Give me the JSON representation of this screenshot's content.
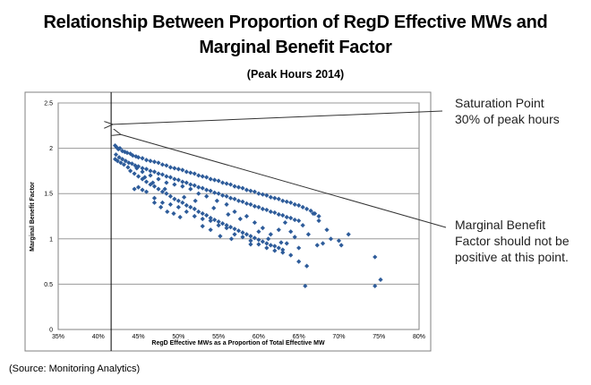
{
  "title_line1": "Relationship Between Proportion of RegD Effective MWs and",
  "title_line2": "Marginal Benefit Factor",
  "subtitle": "(Peak Hours 2014)",
  "source": "(Source: Monitoring Analytics)",
  "annotations": {
    "saturation_line1": "Saturation  Point",
    "saturation_line2": "30% of peak hours",
    "mbf_line1": "Marginal Benefit",
    "mbf_line2": "Factor should not be",
    "mbf_line3": "positive at this point."
  },
  "colors": {
    "points": "#2E5C9A",
    "grid": "#9A9A9A",
    "border": "#808080"
  },
  "chart_data": {
    "type": "scatter",
    "title": "Relationship Between Proportion of RegD Effective MWs and Marginal Benefit Factor",
    "subtitle": "(Peak Hours 2014)",
    "xlabel": "RegD Effective MWs  as a Proportion of Total Effective MW",
    "ylabel": "Marginal Benefit Factor",
    "xlim": [
      0.35,
      0.8
    ],
    "ylim": [
      0,
      2.5
    ],
    "x_ticks": [
      0.35,
      0.4,
      0.45,
      0.5,
      0.55,
      0.6,
      0.65,
      0.7,
      0.75,
      0.8
    ],
    "x_tick_labels": [
      "35%",
      "40%",
      "45%",
      "50%",
      "55%",
      "60%",
      "65%",
      "70%",
      "75%",
      "80%"
    ],
    "y_ticks": [
      0,
      0.5,
      1,
      1.5,
      2,
      2.5
    ],
    "y_tick_labels": [
      "0",
      "0.5",
      "1",
      "1.5",
      "2",
      "2.5"
    ],
    "grid": "horizontal",
    "saturation_point_x": 0.416,
    "points": [
      [
        0.421,
        2.03
      ],
      [
        0.423,
        2.01
      ],
      [
        0.425,
        1.99
      ],
      [
        0.427,
        2.0
      ],
      [
        0.43,
        1.97
      ],
      [
        0.433,
        1.96
      ],
      [
        0.436,
        1.95
      ],
      [
        0.44,
        1.94
      ],
      [
        0.443,
        1.92
      ],
      [
        0.447,
        1.91
      ],
      [
        0.45,
        1.9
      ],
      [
        0.455,
        1.89
      ],
      [
        0.46,
        1.87
      ],
      [
        0.465,
        1.86
      ],
      [
        0.47,
        1.85
      ],
      [
        0.475,
        1.84
      ],
      [
        0.48,
        1.82
      ],
      [
        0.485,
        1.81
      ],
      [
        0.49,
        1.79
      ],
      [
        0.495,
        1.78
      ],
      [
        0.5,
        1.77
      ],
      [
        0.505,
        1.76
      ],
      [
        0.51,
        1.74
      ],
      [
        0.515,
        1.73
      ],
      [
        0.52,
        1.72
      ],
      [
        0.525,
        1.7
      ],
      [
        0.53,
        1.69
      ],
      [
        0.535,
        1.68
      ],
      [
        0.54,
        1.66
      ],
      [
        0.545,
        1.65
      ],
      [
        0.55,
        1.64
      ],
      [
        0.555,
        1.62
      ],
      [
        0.56,
        1.61
      ],
      [
        0.565,
        1.6
      ],
      [
        0.57,
        1.58
      ],
      [
        0.575,
        1.57
      ],
      [
        0.58,
        1.56
      ],
      [
        0.585,
        1.54
      ],
      [
        0.59,
        1.53
      ],
      [
        0.595,
        1.52
      ],
      [
        0.6,
        1.5
      ],
      [
        0.605,
        1.49
      ],
      [
        0.61,
        1.48
      ],
      [
        0.615,
        1.46
      ],
      [
        0.62,
        1.45
      ],
      [
        0.625,
        1.44
      ],
      [
        0.63,
        1.42
      ],
      [
        0.635,
        1.41
      ],
      [
        0.64,
        1.4
      ],
      [
        0.645,
        1.38
      ],
      [
        0.65,
        1.37
      ],
      [
        0.655,
        1.35
      ],
      [
        0.66,
        1.33
      ],
      [
        0.665,
        1.31
      ],
      [
        0.67,
        1.28
      ],
      [
        0.675,
        1.25
      ],
      [
        0.422,
        1.93
      ],
      [
        0.426,
        1.9
      ],
      [
        0.43,
        1.88
      ],
      [
        0.434,
        1.86
      ],
      [
        0.438,
        1.84
      ],
      [
        0.442,
        1.83
      ],
      [
        0.446,
        1.81
      ],
      [
        0.45,
        1.8
      ],
      [
        0.455,
        1.78
      ],
      [
        0.46,
        1.77
      ],
      [
        0.465,
        1.75
      ],
      [
        0.47,
        1.74
      ],
      [
        0.475,
        1.72
      ],
      [
        0.48,
        1.71
      ],
      [
        0.485,
        1.69
      ],
      [
        0.49,
        1.68
      ],
      [
        0.495,
        1.66
      ],
      [
        0.5,
        1.65
      ],
      [
        0.505,
        1.63
      ],
      [
        0.51,
        1.62
      ],
      [
        0.515,
        1.6
      ],
      [
        0.52,
        1.59
      ],
      [
        0.525,
        1.57
      ],
      [
        0.53,
        1.56
      ],
      [
        0.535,
        1.54
      ],
      [
        0.54,
        1.53
      ],
      [
        0.545,
        1.51
      ],
      [
        0.55,
        1.5
      ],
      [
        0.555,
        1.48
      ],
      [
        0.56,
        1.47
      ],
      [
        0.565,
        1.45
      ],
      [
        0.57,
        1.44
      ],
      [
        0.575,
        1.42
      ],
      [
        0.58,
        1.41
      ],
      [
        0.585,
        1.39
      ],
      [
        0.59,
        1.38
      ],
      [
        0.595,
        1.36
      ],
      [
        0.6,
        1.35
      ],
      [
        0.605,
        1.33
      ],
      [
        0.61,
        1.32
      ],
      [
        0.615,
        1.3
      ],
      [
        0.62,
        1.29
      ],
      [
        0.625,
        1.27
      ],
      [
        0.63,
        1.26
      ],
      [
        0.635,
        1.24
      ],
      [
        0.64,
        1.23
      ],
      [
        0.645,
        1.21
      ],
      [
        0.65,
        1.2
      ],
      [
        0.44,
        1.75
      ],
      [
        0.445,
        1.72
      ],
      [
        0.45,
        1.69
      ],
      [
        0.455,
        1.66
      ],
      [
        0.46,
        1.63
      ],
      [
        0.465,
        1.6
      ],
      [
        0.47,
        1.58
      ],
      [
        0.475,
        1.55
      ],
      [
        0.48,
        1.52
      ],
      [
        0.485,
        1.5
      ],
      [
        0.49,
        1.47
      ],
      [
        0.495,
        1.44
      ],
      [
        0.5,
        1.42
      ],
      [
        0.505,
        1.4
      ],
      [
        0.51,
        1.37
      ],
      [
        0.515,
        1.35
      ],
      [
        0.52,
        1.33
      ],
      [
        0.525,
        1.3
      ],
      [
        0.53,
        1.28
      ],
      [
        0.535,
        1.26
      ],
      [
        0.54,
        1.23
      ],
      [
        0.545,
        1.21
      ],
      [
        0.55,
        1.19
      ],
      [
        0.555,
        1.17
      ],
      [
        0.56,
        1.15
      ],
      [
        0.565,
        1.13
      ],
      [
        0.57,
        1.11
      ],
      [
        0.575,
        1.09
      ],
      [
        0.58,
        1.07
      ],
      [
        0.585,
        1.05
      ],
      [
        0.59,
        1.03
      ],
      [
        0.595,
        1.01
      ],
      [
        0.6,
        0.99
      ],
      [
        0.605,
        0.97
      ],
      [
        0.61,
        0.95
      ],
      [
        0.615,
        0.93
      ],
      [
        0.62,
        0.92
      ],
      [
        0.625,
        0.9
      ],
      [
        0.63,
        0.88
      ],
      [
        0.445,
        1.55
      ],
      [
        0.45,
        1.57
      ],
      [
        0.455,
        1.54
      ],
      [
        0.46,
        1.52
      ],
      [
        0.47,
        1.45
      ],
      [
        0.48,
        1.4
      ],
      [
        0.49,
        1.38
      ],
      [
        0.5,
        1.35
      ],
      [
        0.51,
        1.3
      ],
      [
        0.52,
        1.25
      ],
      [
        0.53,
        1.22
      ],
      [
        0.54,
        1.2
      ],
      [
        0.55,
        1.15
      ],
      [
        0.56,
        1.12
      ],
      [
        0.57,
        1.05
      ],
      [
        0.58,
        1.02
      ],
      [
        0.59,
        0.98
      ],
      [
        0.6,
        0.94
      ],
      [
        0.61,
        0.9
      ],
      [
        0.62,
        0.87
      ],
      [
        0.63,
        0.85
      ],
      [
        0.64,
        0.82
      ],
      [
        0.65,
        0.75
      ],
      [
        0.66,
        0.7
      ],
      [
        0.658,
        0.48
      ],
      [
        0.745,
        0.48
      ],
      [
        0.752,
        0.55
      ],
      [
        0.745,
        0.8
      ],
      [
        0.712,
        1.05
      ],
      [
        0.7,
        0.98
      ],
      [
        0.69,
        1.0
      ],
      [
        0.685,
        1.1
      ],
      [
        0.675,
        1.2
      ],
      [
        0.668,
        1.28
      ],
      [
        0.662,
        1.05
      ],
      [
        0.655,
        1.15
      ],
      [
        0.65,
        0.9
      ],
      [
        0.64,
        1.08
      ],
      [
        0.635,
        0.95
      ],
      [
        0.625,
        1.1
      ],
      [
        0.615,
        1.05
      ],
      [
        0.605,
        1.12
      ],
      [
        0.595,
        1.18
      ],
      [
        0.585,
        1.25
      ],
      [
        0.57,
        1.3
      ],
      [
        0.56,
        1.38
      ],
      [
        0.548,
        1.42
      ],
      [
        0.535,
        1.47
      ],
      [
        0.525,
        1.5
      ],
      [
        0.515,
        1.55
      ],
      [
        0.505,
        1.58
      ],
      [
        0.495,
        1.6
      ],
      [
        0.485,
        1.62
      ],
      [
        0.475,
        1.66
      ],
      [
        0.465,
        1.7
      ],
      [
        0.455,
        1.74
      ],
      [
        0.448,
        1.78
      ],
      [
        0.437,
        1.79
      ],
      [
        0.432,
        1.82
      ],
      [
        0.428,
        1.84
      ],
      [
        0.424,
        1.86
      ],
      [
        0.421,
        1.88
      ],
      [
        0.47,
        1.4
      ],
      [
        0.478,
        1.35
      ],
      [
        0.486,
        1.3
      ],
      [
        0.494,
        1.28
      ],
      [
        0.502,
        1.24
      ],
      [
        0.53,
        1.14
      ],
      [
        0.54,
        1.1
      ],
      [
        0.552,
        1.03
      ],
      [
        0.566,
        1.0
      ],
      [
        0.59,
        0.94
      ],
      [
        0.612,
        1.0
      ],
      [
        0.628,
        0.96
      ],
      [
        0.645,
        1.02
      ],
      [
        0.673,
        0.93
      ],
      [
        0.68,
        0.95
      ],
      [
        0.703,
        0.93
      ],
      [
        0.633,
        1.18
      ],
      [
        0.6,
        1.08
      ],
      [
        0.577,
        1.22
      ],
      [
        0.562,
        1.27
      ],
      [
        0.544,
        1.34
      ],
      [
        0.521,
        1.42
      ],
      [
        0.507,
        1.46
      ],
      [
        0.483,
        1.55
      ],
      [
        0.468,
        1.62
      ],
      [
        0.458,
        1.68
      ]
    ]
  }
}
